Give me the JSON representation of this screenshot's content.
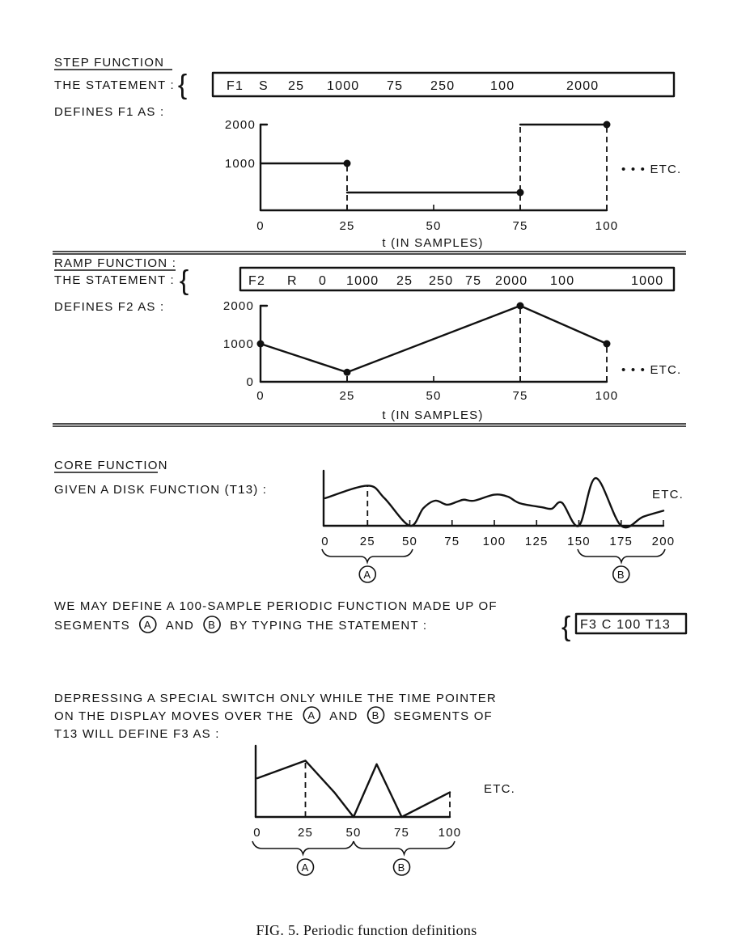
{
  "step": {
    "title": "STEP FUNCTION",
    "statement_label": "THE STATEMENT :",
    "statement_tokens": [
      "F1",
      "S",
      "25",
      "1000",
      "75",
      "250",
      "100",
      "2000"
    ],
    "defines_label": "DEFINES F1 AS :",
    "etc": "• • • ETC."
  },
  "ramp": {
    "title": "RAMP FUNCTION :",
    "statement_label": "THE STATEMENT :",
    "statement_tokens": [
      "F2",
      "R",
      "0",
      "1000",
      "25",
      "250",
      "75",
      "2000",
      "100",
      "1000"
    ],
    "defines_label": "DEFINES F2 AS :",
    "etc": "• • • ETC."
  },
  "core": {
    "title": "CORE FUNCTION",
    "given_label": "GIVEN A DISK FUNCTION (T13) :",
    "etc": "ETC.",
    "segment_a": "A",
    "segment_b": "B",
    "para1_line1": "WE MAY DEFINE A 100-SAMPLE PERIODIC FUNCTION MADE UP OF",
    "para1_line2_pre": "SEGMENTS",
    "para1_line2_mid": "AND",
    "para1_line2_post": "BY TYPING THE STATEMENT :",
    "statement": "F3 C 100 T13",
    "para2_line1": "DEPRESSING A SPECIAL SWITCH ONLY WHILE THE TIME POINTER",
    "para2_line2_pre": "ON THE DISPLAY MOVES OVER THE",
    "para2_line2_mid": "AND",
    "para2_line2_post": "SEGMENTS OF",
    "para2_line3": "T13 WILL DEFINE F3 AS :",
    "f3_etc": "ETC."
  },
  "caption": "FIG. 5.  Periodic function definitions",
  "chart_data": [
    {
      "type": "line",
      "name": "F1 step",
      "interpolation": "step",
      "points": [
        [
          0,
          1000
        ],
        [
          25,
          250
        ],
        [
          75,
          2000
        ],
        [
          100,
          2000
        ]
      ],
      "xticks": [
        "0",
        "25",
        "50",
        "75",
        "100"
      ],
      "yticks": [
        "1000",
        "2000"
      ],
      "xlabel": "t (IN SAMPLES)",
      "xlim": [
        0,
        100
      ],
      "ylim": [
        0,
        2000
      ]
    },
    {
      "type": "line",
      "name": "F2 ramp",
      "points": [
        [
          0,
          1000
        ],
        [
          25,
          250
        ],
        [
          75,
          2000
        ],
        [
          100,
          1000
        ]
      ],
      "xticks": [
        "0",
        "25",
        "50",
        "75",
        "100"
      ],
      "yticks": [
        "0",
        "1000",
        "2000"
      ],
      "xlabel": "t (IN SAMPLES)",
      "xlim": [
        0,
        100
      ],
      "ylim": [
        0,
        2000
      ]
    },
    {
      "type": "line",
      "name": "T13 disk function",
      "points": [
        [
          0,
          0.55
        ],
        [
          25,
          0.8
        ],
        [
          35,
          0.55
        ],
        [
          50,
          0.0
        ],
        [
          58,
          0.35
        ],
        [
          65,
          0.5
        ],
        [
          72,
          0.42
        ],
        [
          78,
          0.48
        ],
        [
          82,
          0.52
        ],
        [
          88,
          0.5
        ],
        [
          100,
          0.62
        ],
        [
          108,
          0.58
        ],
        [
          115,
          0.45
        ],
        [
          128,
          0.37
        ],
        [
          134,
          0.34
        ],
        [
          140,
          0.46
        ],
        [
          150,
          0.0
        ],
        [
          160,
          0.95
        ],
        [
          175,
          0.0
        ],
        [
          188,
          0.18
        ],
        [
          200,
          0.3
        ]
      ],
      "xticks": [
        "0",
        "25",
        "50",
        "75",
        "100",
        "125",
        "150",
        "175",
        "200"
      ],
      "xlim": [
        0,
        200
      ],
      "ylim": [
        0,
        1
      ]
    },
    {
      "type": "line",
      "name": "F3 core function",
      "points": [
        [
          0,
          0.55
        ],
        [
          25,
          0.8
        ],
        [
          40,
          0.35
        ],
        [
          50,
          0.0
        ],
        [
          62,
          0.75
        ],
        [
          75,
          0.0
        ],
        [
          100,
          0.35
        ]
      ],
      "xticks": [
        "0",
        "25",
        "50",
        "75",
        "100"
      ],
      "xlim": [
        0,
        100
      ],
      "ylim": [
        0,
        1
      ]
    }
  ]
}
